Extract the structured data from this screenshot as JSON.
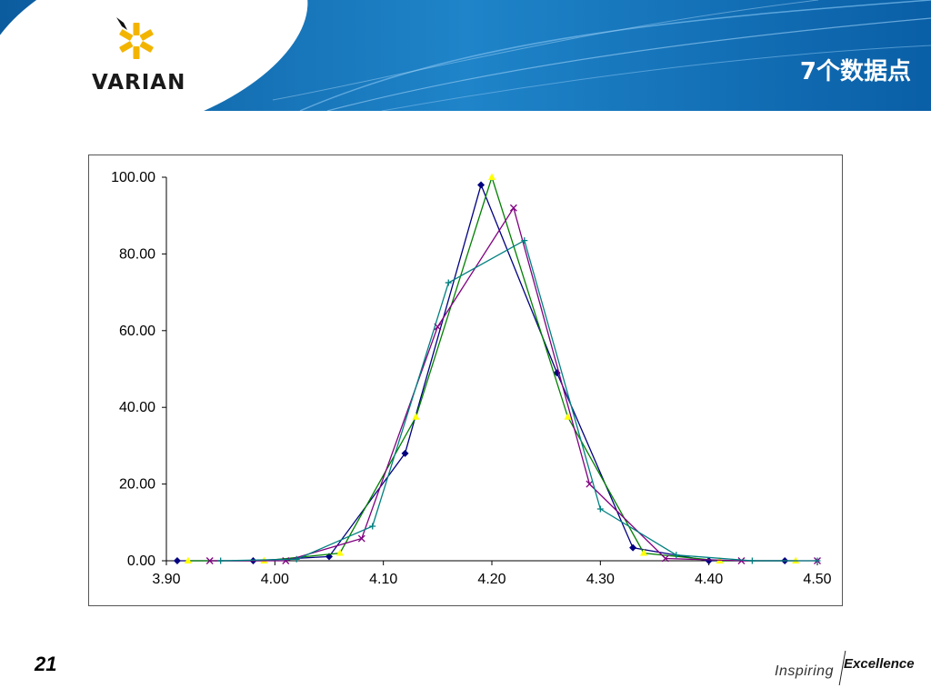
{
  "header": {
    "title": "7个数据点",
    "logo_text": "VARIAN",
    "colors": {
      "band": "#1a73b8",
      "band_dark": "#0d5a9a"
    }
  },
  "footer": {
    "page_number": "21",
    "tagline_part1": "Inspiring",
    "tagline_part2": "Excellence"
  },
  "chart_data": {
    "type": "line",
    "title": "",
    "xlabel": "",
    "ylabel": "",
    "xlim": [
      3.9,
      4.5
    ],
    "ylim": [
      0,
      100
    ],
    "x_ticks": [
      "3.90",
      "4.00",
      "4.10",
      "4.20",
      "4.30",
      "4.40",
      "4.50"
    ],
    "y_ticks": [
      "0.00",
      "20.00",
      "40.00",
      "60.00",
      "80.00",
      "100.00"
    ],
    "grid": false,
    "legend": "none",
    "series": [
      {
        "color": "#000080",
        "marker": "diamond",
        "points": [
          [
            3.91,
            0
          ],
          [
            3.98,
            0
          ],
          [
            4.05,
            1.1
          ],
          [
            4.12,
            28
          ],
          [
            4.19,
            98
          ],
          [
            4.26,
            49
          ],
          [
            4.33,
            3.4
          ],
          [
            4.4,
            0
          ],
          [
            4.47,
            0
          ]
        ]
      },
      {
        "color": "#9a9a00",
        "line_color": "#008000",
        "marker": "triangle",
        "marker_color": "#ffff00",
        "points": [
          [
            3.92,
            0
          ],
          [
            3.99,
            0
          ],
          [
            4.06,
            2
          ],
          [
            4.13,
            37.5
          ],
          [
            4.2,
            100
          ],
          [
            4.27,
            37.5
          ],
          [
            4.34,
            2
          ],
          [
            4.41,
            0
          ],
          [
            4.48,
            0
          ]
        ]
      },
      {
        "color": "#800080",
        "marker": "x",
        "points": [
          [
            3.94,
            0
          ],
          [
            4.01,
            0
          ],
          [
            4.08,
            5.8
          ],
          [
            4.15,
            61
          ],
          [
            4.22,
            92
          ],
          [
            4.29,
            20
          ],
          [
            4.36,
            0.6
          ],
          [
            4.43,
            0
          ],
          [
            4.5,
            0
          ]
        ]
      },
      {
        "color": "#008080",
        "marker": "plus",
        "points": [
          [
            3.95,
            0
          ],
          [
            4.02,
            0.4
          ],
          [
            4.09,
            9
          ],
          [
            4.16,
            72.5
          ],
          [
            4.23,
            83.5
          ],
          [
            4.3,
            13.5
          ],
          [
            4.37,
            1.5
          ],
          [
            4.44,
            0
          ],
          [
            4.5,
            0
          ]
        ]
      }
    ]
  }
}
